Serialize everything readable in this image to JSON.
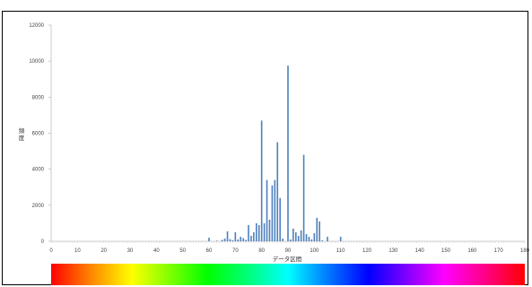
{
  "chart_data": {
    "type": "bar",
    "xlabel": "データ区間",
    "ylabel": "頻度",
    "xlim": [
      0,
      180
    ],
    "ylim": [
      0,
      12000
    ],
    "x_ticks": [
      0,
      10,
      20,
      30,
      40,
      50,
      60,
      70,
      80,
      90,
      100,
      110,
      120,
      130,
      140,
      150,
      160,
      170,
      180
    ],
    "y_ticks": [
      0,
      2000,
      4000,
      6000,
      8000,
      10000,
      12000
    ],
    "grid": false,
    "legend": "none",
    "bar_color": "#4f81bd",
    "points": [
      {
        "x": 60,
        "y": 200
      },
      {
        "x": 63,
        "y": 30
      },
      {
        "x": 65,
        "y": 80
      },
      {
        "x": 66,
        "y": 150
      },
      {
        "x": 67,
        "y": 550
      },
      {
        "x": 68,
        "y": 120
      },
      {
        "x": 69,
        "y": 60
      },
      {
        "x": 70,
        "y": 500
      },
      {
        "x": 71,
        "y": 100
      },
      {
        "x": 72,
        "y": 250
      },
      {
        "x": 73,
        "y": 180
      },
      {
        "x": 74,
        "y": 80
      },
      {
        "x": 75,
        "y": 900
      },
      {
        "x": 76,
        "y": 300
      },
      {
        "x": 77,
        "y": 500
      },
      {
        "x": 78,
        "y": 1000
      },
      {
        "x": 79,
        "y": 900
      },
      {
        "x": 80,
        "y": 6700
      },
      {
        "x": 81,
        "y": 1000
      },
      {
        "x": 82,
        "y": 3400
      },
      {
        "x": 83,
        "y": 1200
      },
      {
        "x": 84,
        "y": 3100
      },
      {
        "x": 85,
        "y": 3400
      },
      {
        "x": 86,
        "y": 5500
      },
      {
        "x": 87,
        "y": 2400
      },
      {
        "x": 88,
        "y": 150
      },
      {
        "x": 90,
        "y": 9750
      },
      {
        "x": 91,
        "y": 100
      },
      {
        "x": 92,
        "y": 700
      },
      {
        "x": 93,
        "y": 500
      },
      {
        "x": 94,
        "y": 300
      },
      {
        "x": 95,
        "y": 600
      },
      {
        "x": 96,
        "y": 4800
      },
      {
        "x": 97,
        "y": 400
      },
      {
        "x": 98,
        "y": 250
      },
      {
        "x": 99,
        "y": 100
      },
      {
        "x": 100,
        "y": 450
      },
      {
        "x": 101,
        "y": 1300
      },
      {
        "x": 102,
        "y": 1100
      },
      {
        "x": 103,
        "y": 50
      },
      {
        "x": 105,
        "y": 250
      },
      {
        "x": 110,
        "y": 250
      }
    ]
  }
}
